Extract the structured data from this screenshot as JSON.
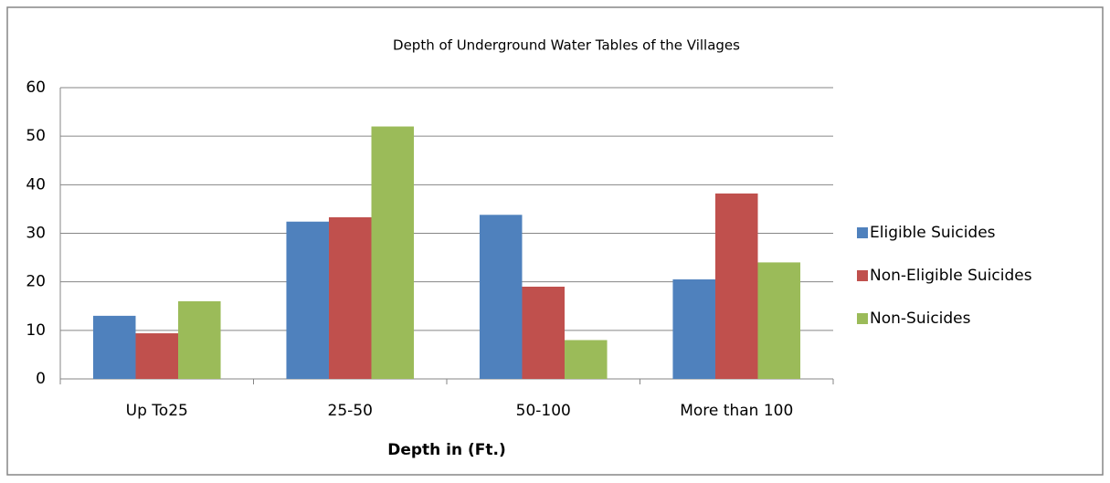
{
  "chart_data": {
    "type": "bar",
    "title": "Depth of Underground Water Tables of the Villages",
    "x_label": "Depth in (Ft.)",
    "categories": [
      "Up To25",
      "25-50",
      "50-100",
      "More than 100"
    ],
    "series": [
      {
        "name": "Eligible Suicides",
        "color": "#4f81bd",
        "values": [
          13,
          32.4,
          33.8,
          20.5
        ]
      },
      {
        "name": "Non-Eligible Suicides",
        "color": "#c0504d",
        "values": [
          9.4,
          33.3,
          19,
          38.2
        ]
      },
      {
        "name": "Non-Suicides",
        "color": "#9bbb59",
        "values": [
          16,
          52,
          8,
          24
        ]
      }
    ],
    "ylim": [
      0,
      60
    ],
    "yticks": [
      0,
      10,
      20,
      30,
      40,
      50,
      60
    ],
    "grid": true,
    "legend": "right"
  }
}
